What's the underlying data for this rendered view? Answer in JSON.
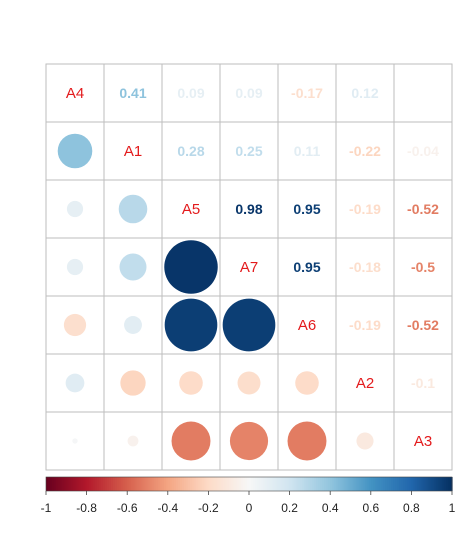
{
  "chart_data": {
    "type": "heatmap",
    "variables": [
      "A4",
      "A1",
      "A5",
      "A7",
      "A6",
      "A2",
      "A3"
    ],
    "matrix": [
      [
        1.0,
        0.41,
        0.09,
        0.09,
        -0.17,
        0.12,
        0.01
      ],
      [
        0.41,
        1.0,
        0.28,
        0.25,
        0.11,
        -0.22,
        -0.04
      ],
      [
        0.09,
        0.28,
        1.0,
        0.98,
        0.95,
        -0.19,
        -0.52
      ],
      [
        0.09,
        0.25,
        0.98,
        1.0,
        0.95,
        -0.18,
        -0.5
      ],
      [
        -0.17,
        0.11,
        0.95,
        0.95,
        1.0,
        -0.19,
        -0.52
      ],
      [
        0.12,
        -0.22,
        -0.19,
        -0.18,
        -0.19,
        1.0,
        -0.1
      ],
      [
        0.01,
        -0.04,
        -0.52,
        -0.5,
        -0.52,
        -0.1,
        1.0
      ]
    ],
    "upper_labels": [
      [
        "",
        "0.41",
        "0.09",
        "0.09",
        "-0.17",
        "0.12",
        ""
      ],
      [
        "",
        "",
        "0.28",
        "0.25",
        "0.11",
        "-0.22",
        "-0.04"
      ],
      [
        "",
        "",
        "",
        "0.98",
        "0.95",
        "-0.19",
        "-0.52"
      ],
      [
        "",
        "",
        "",
        "",
        "0.95",
        "-0.18",
        "-0.5"
      ],
      [
        "",
        "",
        "",
        "",
        "",
        "-0.19",
        "-0.52"
      ],
      [
        "",
        "",
        "",
        "",
        "",
        "",
        "-0.1"
      ],
      [
        "",
        "",
        "",
        "",
        "",
        "",
        ""
      ]
    ],
    "lower_style": "circle",
    "upper_style": "number",
    "colorbar": {
      "min": -1,
      "max": 1,
      "ticks": [
        "-1",
        "-0.8",
        "-0.6",
        "-0.4",
        "-0.2",
        "0",
        "0.2",
        "0.4",
        "0.6",
        "0.8",
        "1"
      ],
      "placement": "bottom"
    },
    "colors": {
      "negative": "#67001F",
      "neutral": "#F7F7F7",
      "positive": "#053061",
      "diagonal_label": "#E31A1C",
      "grid": "#BEBEBE"
    }
  }
}
